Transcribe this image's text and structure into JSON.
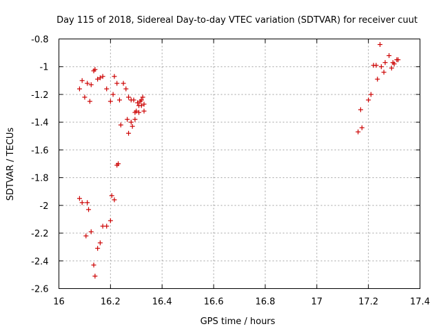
{
  "chart_data": {
    "type": "scatter",
    "title": "Day 115 of 2018, Sidereal Day-to-day VTEC variation (SDTVAR) for receiver cuut",
    "xlabel": "GPS time / hours",
    "ylabel": "SDTVAR / TECUs",
    "xlim": [
      16,
      17.4
    ],
    "ylim": [
      -2.6,
      -0.8
    ],
    "xticks": [
      16,
      16.2,
      16.4,
      16.6,
      16.8,
      17,
      17.2,
      17.4
    ],
    "xtick_labels": [
      "16",
      "16.2",
      "16.4",
      "16.6",
      "16.8",
      "17",
      "17.2",
      "17.4"
    ],
    "yticks": [
      -0.8,
      -1,
      -1.2,
      -1.4,
      -1.6,
      -1.8,
      -2,
      -2.2,
      -2.4,
      -2.6
    ],
    "ytick_labels": [
      "-0.8",
      "-1",
      "-1.2",
      "-1.4",
      "-1.6",
      "-1.8",
      "-2",
      "-2.2",
      "-2.4",
      "-2.6"
    ],
    "grid": true,
    "marker": "plus",
    "color": "#cc0000",
    "series": [
      {
        "name": "SDTVAR",
        "points": [
          [
            16.08,
            -1.16
          ],
          [
            16.09,
            -1.1
          ],
          [
            16.1,
            -1.22
          ],
          [
            16.11,
            -1.12
          ],
          [
            16.12,
            -1.25
          ],
          [
            16.125,
            -1.13
          ],
          [
            16.135,
            -1.03
          ],
          [
            16.14,
            -1.02
          ],
          [
            16.15,
            -1.09
          ],
          [
            16.16,
            -1.08
          ],
          [
            16.17,
            -1.07
          ],
          [
            16.185,
            -1.16
          ],
          [
            16.2,
            -1.25
          ],
          [
            16.21,
            -1.2
          ],
          [
            16.215,
            -1.07
          ],
          [
            16.225,
            -1.12
          ],
          [
            16.235,
            -1.24
          ],
          [
            16.24,
            -1.42
          ],
          [
            16.25,
            -1.12
          ],
          [
            16.26,
            -1.16
          ],
          [
            16.265,
            -1.38
          ],
          [
            16.27,
            -1.48
          ],
          [
            16.27,
            -1.22
          ],
          [
            16.28,
            -1.24
          ],
          [
            16.28,
            -1.4
          ],
          [
            16.285,
            -1.43
          ],
          [
            16.29,
            -1.24
          ],
          [
            16.295,
            -1.33
          ],
          [
            16.295,
            -1.38
          ],
          [
            16.3,
            -1.32
          ],
          [
            16.305,
            -1.26
          ],
          [
            16.31,
            -1.28
          ],
          [
            16.31,
            -1.33
          ],
          [
            16.315,
            -1.25
          ],
          [
            16.32,
            -1.24
          ],
          [
            16.32,
            -1.28
          ],
          [
            16.325,
            -1.22
          ],
          [
            16.33,
            -1.27
          ],
          [
            16.33,
            -1.32
          ],
          [
            16.225,
            -1.71
          ],
          [
            16.23,
            -1.7
          ],
          [
            16.08,
            -1.95
          ],
          [
            16.09,
            -1.98
          ],
          [
            16.105,
            -2.22
          ],
          [
            16.11,
            -1.98
          ],
          [
            16.115,
            -2.03
          ],
          [
            16.125,
            -2.19
          ],
          [
            16.135,
            -2.43
          ],
          [
            16.14,
            -2.51
          ],
          [
            16.15,
            -2.31
          ],
          [
            16.16,
            -2.27
          ],
          [
            16.17,
            -2.15
          ],
          [
            16.185,
            -2.15
          ],
          [
            16.2,
            -2.11
          ],
          [
            16.205,
            -1.93
          ],
          [
            16.215,
            -1.96
          ],
          [
            17.16,
            -1.47
          ],
          [
            17.17,
            -1.31
          ],
          [
            17.175,
            -1.44
          ],
          [
            17.2,
            -1.24
          ],
          [
            17.21,
            -1.2
          ],
          [
            17.22,
            -0.99
          ],
          [
            17.23,
            -0.99
          ],
          [
            17.235,
            -1.09
          ],
          [
            17.245,
            -0.84
          ],
          [
            17.25,
            -1.0
          ],
          [
            17.26,
            -1.04
          ],
          [
            17.265,
            -0.97
          ],
          [
            17.28,
            -0.92
          ],
          [
            17.29,
            -1.01
          ],
          [
            17.295,
            -0.97
          ],
          [
            17.3,
            -0.98
          ],
          [
            17.31,
            -0.95
          ],
          [
            17.315,
            -0.95
          ]
        ]
      }
    ]
  }
}
